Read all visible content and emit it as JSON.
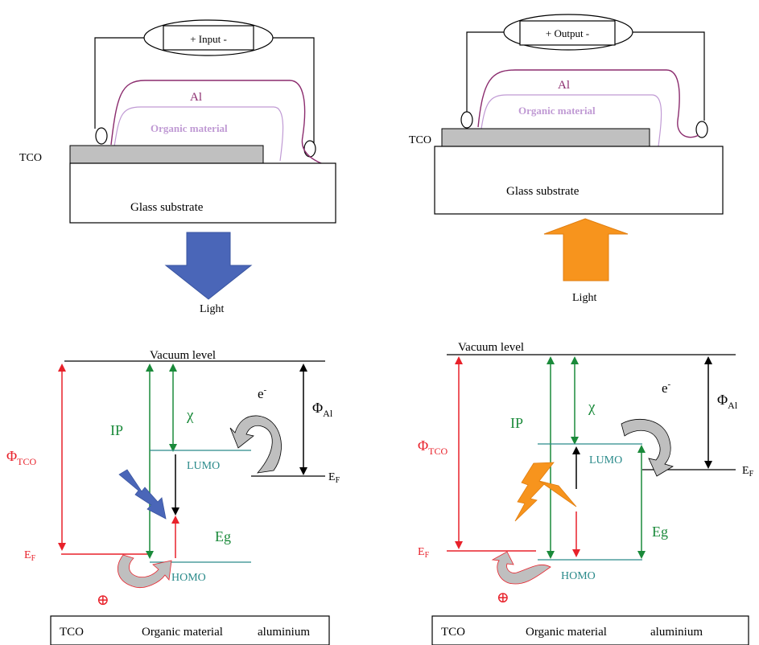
{
  "device_left": {
    "source_label": "+  Input  -",
    "al_label": "Al",
    "organic_label": "Organic material",
    "tco_label": "TCO",
    "substrate_label": "Glass substrate",
    "light_label": "Light"
  },
  "device_right": {
    "source_label": "+  Output  -",
    "al_label": "Al",
    "organic_label": "Organic material",
    "tco_label": "TCO",
    "substrate_label": "Glass substrate",
    "light_label": "Light"
  },
  "energy_left": {
    "vacuum_label": "Vacuum level",
    "phi_tco": "Φ",
    "phi_tco_sub": "TCO",
    "ip_label": "IP",
    "chi_label": "χ",
    "electron_label": "e",
    "electron_sup": "-",
    "phi_al": "Φ",
    "phi_al_sub": "Al",
    "lumo_label": "LUMO",
    "ef_right": "E",
    "ef_right_sub": "F",
    "eg_label": "Eg",
    "ef_left": "E",
    "ef_left_sub": "F",
    "homo_label": "HOMO",
    "hole_symbol": "⊕",
    "legend_tco": "TCO",
    "legend_organic": "Organic material",
    "legend_al": "aluminium"
  },
  "energy_right": {
    "vacuum_label": "Vacuum level",
    "phi_tco": "Φ",
    "phi_tco_sub": "TCO",
    "ip_label": "IP",
    "chi_label": "χ",
    "electron_label": "e",
    "electron_sup": "-",
    "phi_al": "Φ",
    "phi_al_sub": "Al",
    "lumo_label": "LUMO",
    "ef_right": "E",
    "ef_right_sub": "F",
    "eg_label": "Eg",
    "ef_left": "E",
    "ef_left_sub": "F",
    "homo_label": "HOMO",
    "hole_symbol": "⊕",
    "legend_tco": "TCO",
    "legend_organic": "Organic material",
    "legend_al": "aluminium"
  },
  "colors": {
    "al": "#8b2c6e",
    "organic": "#c09ad4",
    "tco_fill": "#c0c0c0",
    "light_in": "#4a66b8",
    "light_out": "#f7941d",
    "red": "#e8212a",
    "green": "#1a8a3a",
    "teal": "#2a8a8a",
    "grey_arrow": "#bfbfbf"
  }
}
